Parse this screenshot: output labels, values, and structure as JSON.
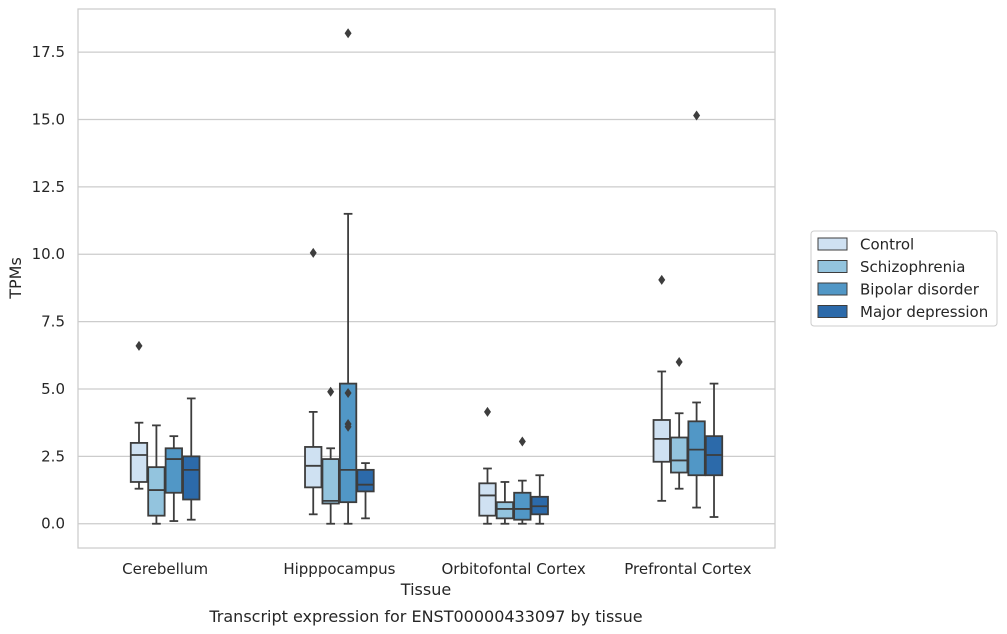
{
  "chart_data": {
    "type": "box",
    "title": "",
    "caption": "Transcript expression for ENST00000433097 by tissue",
    "xlabel": "Tissue",
    "ylabel": "TPMs",
    "ylim": [
      -0.9,
      19.1
    ],
    "yticks": [
      "0.0",
      "2.5",
      "5.0",
      "7.5",
      "10.0",
      "12.5",
      "15.0",
      "17.5"
    ],
    "ytick_values": [
      0,
      2.5,
      5,
      7.5,
      10,
      12.5,
      15,
      17.5
    ],
    "grid": "horizontal",
    "legend_position": "right",
    "categories": [
      "Cerebellum",
      "Hipppocampus",
      "Orbitofontal Cortex",
      "Prefrontal Cortex"
    ],
    "series": [
      {
        "name": "Control",
        "color": "#cfe1f2",
        "boxes": [
          {
            "min": 1.3,
            "q1": 1.55,
            "median": 2.55,
            "q3": 3.0,
            "max": 3.75,
            "outliers": [
              6.6
            ]
          },
          {
            "min": 0.35,
            "q1": 1.35,
            "median": 2.15,
            "q3": 2.85,
            "max": 4.15,
            "outliers": [
              10.05
            ]
          },
          {
            "min": 0.0,
            "q1": 0.3,
            "median": 1.05,
            "q3": 1.5,
            "max": 2.05,
            "outliers": [
              4.15
            ]
          },
          {
            "min": 0.85,
            "q1": 2.3,
            "median": 3.15,
            "q3": 3.85,
            "max": 5.65,
            "outliers": [
              9.05
            ]
          }
        ]
      },
      {
        "name": "Schizophrenia",
        "color": "#93c4de",
        "boxes": [
          {
            "min": 0.0,
            "q1": 0.3,
            "median": 1.25,
            "q3": 2.1,
            "max": 3.65,
            "outliers": []
          },
          {
            "min": 0.0,
            "q1": 0.75,
            "median": 0.85,
            "q3": 2.4,
            "max": 2.8,
            "outliers": [
              4.9
            ]
          },
          {
            "min": 0.0,
            "q1": 0.2,
            "median": 0.55,
            "q3": 0.8,
            "max": 1.55,
            "outliers": []
          },
          {
            "min": 1.3,
            "q1": 1.9,
            "median": 2.35,
            "q3": 3.2,
            "max": 4.1,
            "outliers": [
              6.0
            ]
          }
        ]
      },
      {
        "name": "Bipolar disorder",
        "color": "#5197c6",
        "boxes": [
          {
            "min": 0.1,
            "q1": 1.15,
            "median": 2.4,
            "q3": 2.8,
            "max": 3.25,
            "outliers": []
          },
          {
            "min": 0.0,
            "q1": 0.8,
            "median": 2.0,
            "q3": 5.2,
            "max": 11.5,
            "outliers": [
              18.2,
              4.85,
              3.7,
              3.6
            ]
          },
          {
            "min": 0.0,
            "q1": 0.15,
            "median": 0.55,
            "q3": 1.15,
            "max": 1.6,
            "outliers": [
              3.05
            ]
          },
          {
            "min": 0.6,
            "q1": 1.8,
            "median": 2.75,
            "q3": 3.8,
            "max": 4.5,
            "outliers": [
              15.15
            ]
          }
        ]
      },
      {
        "name": "Major depression",
        "color": "#2c6aaa",
        "boxes": [
          {
            "min": 0.15,
            "q1": 0.9,
            "median": 2.0,
            "q3": 2.5,
            "max": 4.65,
            "outliers": []
          },
          {
            "min": 0.2,
            "q1": 1.2,
            "median": 1.45,
            "q3": 2.0,
            "max": 2.25,
            "outliers": []
          },
          {
            "min": 0.0,
            "q1": 0.35,
            "median": 0.65,
            "q3": 1.0,
            "max": 1.8,
            "outliers": []
          },
          {
            "min": 0.25,
            "q1": 1.8,
            "median": 2.55,
            "q3": 3.25,
            "max": 5.2,
            "outliers": []
          }
        ]
      }
    ]
  }
}
